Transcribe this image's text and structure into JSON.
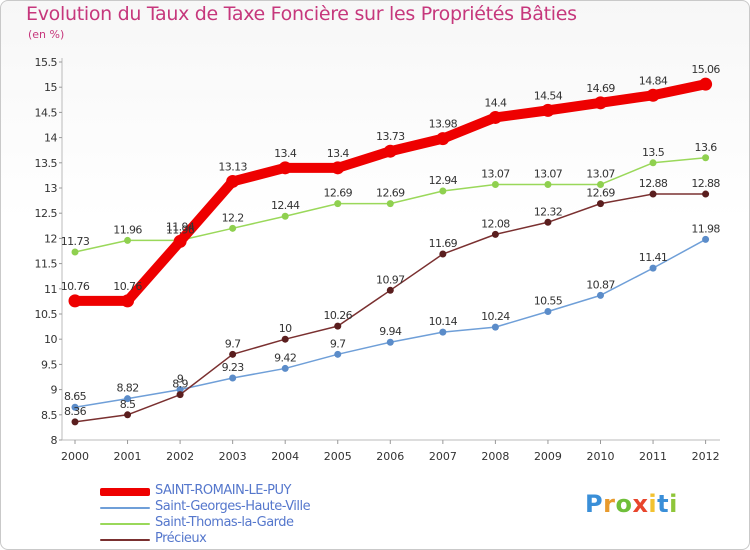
{
  "title": "Evolution du Taux de Taxe Foncière sur les Propriétés Bâties",
  "subtitle": "(en %)",
  "logo": {
    "text": "Proxiti",
    "letter_colors": [
      "#3a8fd8",
      "#e89a2c",
      "#6fbf3a",
      "#e8452c",
      "#f2c230",
      "#3a8fd8",
      "#8fc63a"
    ]
  },
  "chart_data": {
    "type": "line",
    "title": "Evolution du Taux de Taxe Foncière sur les Propriétés Bâties",
    "ylabel": "(en %)",
    "xlabel": "",
    "x": [
      "2000",
      "2001",
      "2002",
      "2003",
      "2004",
      "2005",
      "2006",
      "2007",
      "2008",
      "2009",
      "2010",
      "2011",
      "2012"
    ],
    "ylim": [
      8,
      15.5
    ],
    "yticks": [
      "8",
      "8.5",
      "9",
      "9.5",
      "10",
      "10.5",
      "11",
      "11.5",
      "12",
      "12.5",
      "13",
      "13.5",
      "14",
      "14.5",
      "15",
      "15.5"
    ],
    "grid": false,
    "legend_position": "bottom-left",
    "series": [
      {
        "name": "SAINT-ROMAIN-LE-PUY",
        "color": "#ee0000",
        "marker_color": "#ee0000",
        "style": "thick",
        "values": [
          10.76,
          10.76,
          11.94,
          13.13,
          13.4,
          13.4,
          13.73,
          13.98,
          14.4,
          14.54,
          14.69,
          14.84,
          15.06
        ],
        "labels": [
          "10.76",
          "10.76",
          "11.94",
          "13.13",
          "13.4",
          "13.4",
          "13.73",
          "13.98",
          "14.4",
          "14.54",
          "14.69",
          "14.84",
          "15.06"
        ]
      },
      {
        "name": "Saint-Georges-Haute-Ville",
        "color": "#6f9fd8",
        "marker_color": "#5b8cc9",
        "style": "thin",
        "values": [
          8.65,
          8.82,
          9,
          9.23,
          9.42,
          9.7,
          9.94,
          10.14,
          10.24,
          10.55,
          10.87,
          11.41,
          11.98
        ],
        "labels": [
          "8.65",
          "8.82",
          "9",
          "9.23",
          "9.42",
          "9.7",
          "9.94",
          "10.14",
          "10.24",
          "10.55",
          "10.87",
          "11.41",
          "11.98"
        ]
      },
      {
        "name": "Saint-Thomas-la-Garde",
        "color": "#9ad85a",
        "marker_color": "#8fd04f",
        "style": "thin",
        "values": [
          11.73,
          11.96,
          11.96,
          12.2,
          12.44,
          12.69,
          12.69,
          12.94,
          13.07,
          13.07,
          13.07,
          13.5,
          13.6
        ],
        "labels": [
          "11.73",
          "11.96",
          "11.96",
          "12.2",
          "12.44",
          "12.69",
          "12.69",
          "12.94",
          "13.07",
          "13.07",
          "13.07",
          "13.5",
          "13.6"
        ]
      },
      {
        "name": "Précieux",
        "color": "#7a3030",
        "marker_color": "#5a1e1e",
        "style": "thin",
        "values": [
          8.36,
          8.5,
          8.9,
          9.7,
          10,
          10.26,
          10.97,
          11.69,
          12.08,
          12.32,
          12.69,
          12.88,
          12.88
        ],
        "labels": [
          "8.36",
          "8.5",
          "8.9",
          "9.7",
          "10",
          "10.26",
          "10.97",
          "11.69",
          "12.08",
          "12.32",
          "12.69",
          "12.88",
          "12.88"
        ]
      }
    ]
  }
}
